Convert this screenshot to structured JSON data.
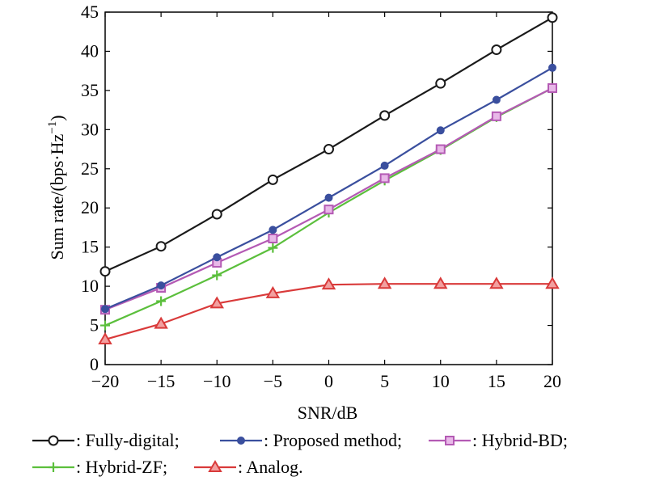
{
  "chart_data": {
    "type": "line",
    "xlabel": "SNR/dB",
    "ylabel_main": "Sum rate/(bps·Hz",
    "ylabel_sup": "−1",
    "ylabel_close": ")",
    "xlim": [
      -20,
      20
    ],
    "ylim": [
      0,
      45
    ],
    "xticks": [
      -20,
      -15,
      -10,
      -5,
      0,
      5,
      10,
      15,
      20
    ],
    "xtick_labels": [
      "−20",
      "−15",
      "−10",
      "−5",
      "0",
      "5",
      "10",
      "15",
      "20"
    ],
    "yticks": [
      0,
      5,
      10,
      15,
      20,
      25,
      30,
      35,
      40,
      45
    ],
    "ytick_labels": [
      "0",
      "5",
      "10",
      "15",
      "20",
      "25",
      "30",
      "35",
      "40",
      "45"
    ],
    "grid": false,
    "x": [
      -20,
      -15,
      -10,
      -5,
      0,
      5,
      10,
      15,
      20
    ],
    "series": [
      {
        "name": "Fully-digital;",
        "color": "#1a1a1a",
        "marker": "circle",
        "values": [
          11.9,
          15.1,
          19.2,
          23.6,
          27.5,
          31.8,
          35.9,
          40.2,
          44.3
        ]
      },
      {
        "name": "Proposed method;",
        "color": "#3a4f9e",
        "marker": "filled-circle",
        "values": [
          7.1,
          10.1,
          13.7,
          17.2,
          21.3,
          25.4,
          29.9,
          33.8,
          37.9
        ]
      },
      {
        "name": "Hybrid-BD;",
        "color": "#b45ab4",
        "marker": "square",
        "values": [
          7.0,
          9.8,
          13.0,
          16.1,
          19.8,
          23.8,
          27.5,
          31.7,
          35.3
        ]
      },
      {
        "name": "Hybrid-ZF;",
        "color": "#5bbf3c",
        "marker": "plus",
        "values": [
          5.0,
          8.1,
          11.4,
          14.9,
          19.4,
          23.5,
          27.4,
          31.6,
          35.3
        ]
      },
      {
        "name": "Analog.",
        "color": "#d93a3a",
        "marker": "triangle",
        "values": [
          3.2,
          5.2,
          7.8,
          9.1,
          10.2,
          10.3,
          10.3,
          10.3,
          10.3
        ]
      }
    ],
    "legend_prefix": ": ",
    "legend_placement": "bottom"
  }
}
